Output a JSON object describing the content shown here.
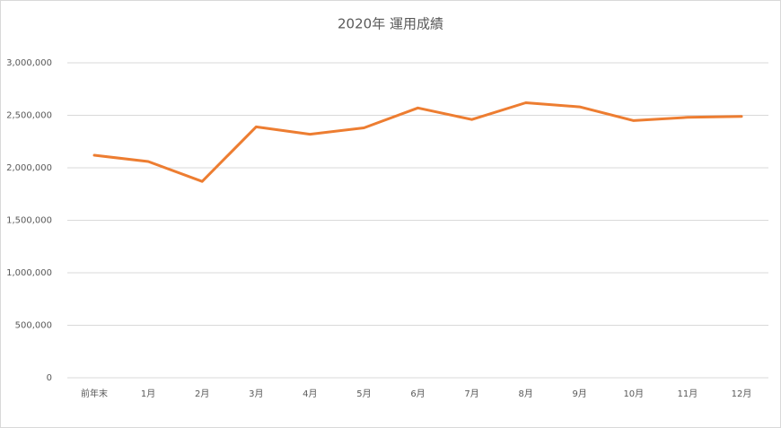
{
  "chart_data": {
    "type": "line",
    "title": "2020年 運用成績",
    "categories": [
      "前年末",
      "1月",
      "2月",
      "3月",
      "4月",
      "5月",
      "6月",
      "7月",
      "8月",
      "9月",
      "10月",
      "11月",
      "12月"
    ],
    "series": [
      {
        "name": "運用成績",
        "color": "#ed7d31",
        "values": [
          2120000,
          2060000,
          1870000,
          2390000,
          2320000,
          2380000,
          2570000,
          2460000,
          2620000,
          2580000,
          2450000,
          2480000,
          2490000
        ]
      }
    ],
    "ylim": [
      0,
      3000000
    ],
    "yticks": [
      0,
      {
        "value": 500000,
        "label": "500,000"
      },
      {
        "value": 1000000,
        "label": "1,000,000"
      },
      {
        "value": 1500000,
        "label": "1,500,000"
      },
      {
        "value": 2000000,
        "label": "2,000,000"
      },
      {
        "value": 2500000,
        "label": "2,500,000"
      },
      {
        "value": 3000000,
        "label": "3,000,000"
      }
    ],
    "grid": true
  }
}
